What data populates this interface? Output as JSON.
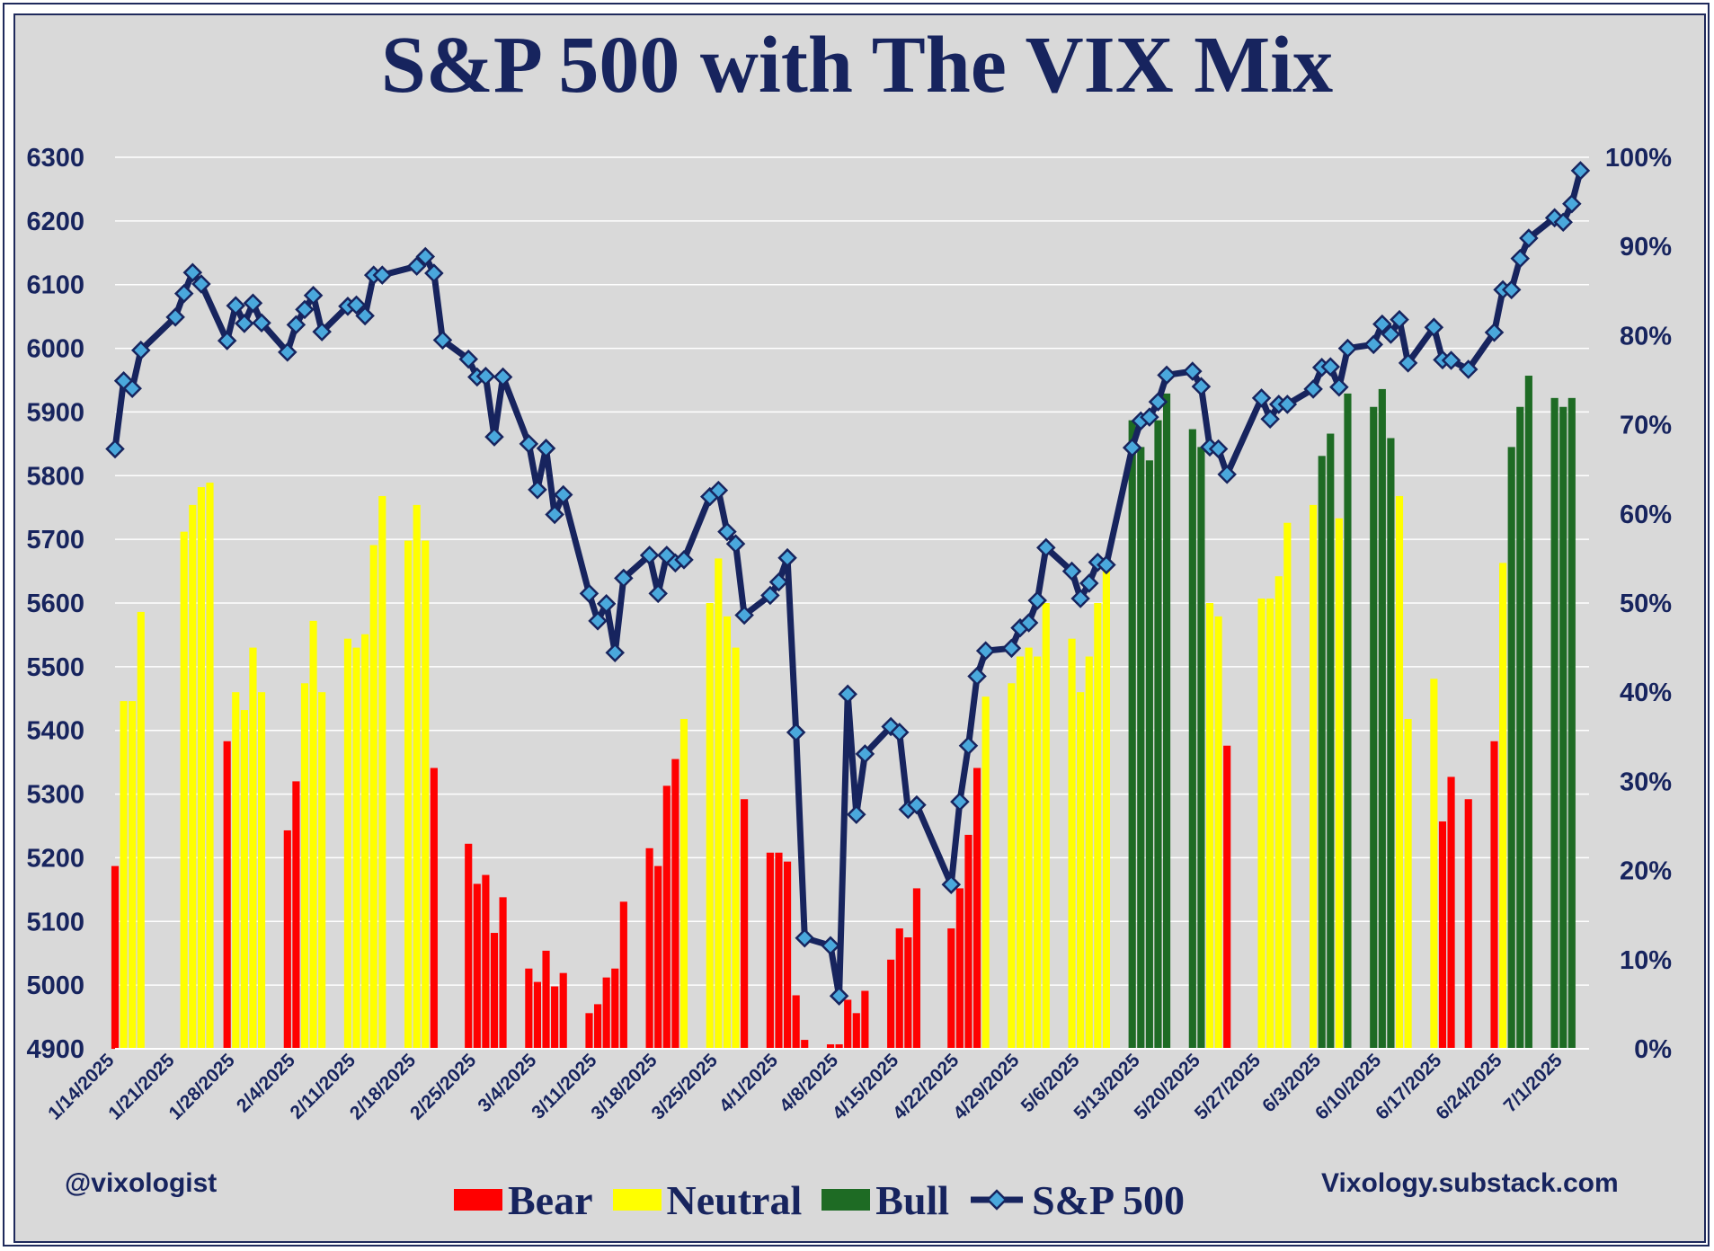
{
  "chart_data": {
    "type": "bar",
    "title": "S&P 500 with The VIX Mix",
    "y_left": {
      "ticks": [
        "6300",
        "6200",
        "6100",
        "6000",
        "5900",
        "5800",
        "5700",
        "5600",
        "5500",
        "5400",
        "5300",
        "5200",
        "5100",
        "5000",
        "4900"
      ],
      "range": [
        4900,
        6300
      ]
    },
    "y_right": {
      "ticks": [
        "100%",
        "90%",
        "80%",
        "70%",
        "60%",
        "50%",
        "40%",
        "30%",
        "20%",
        "10%",
        "0%"
      ],
      "range": [
        0,
        100
      ]
    },
    "x_tick_labels": [
      "1/14/2025",
      "1/21/2025",
      "1/28/2025",
      "2/4/2025",
      "2/11/2025",
      "2/18/2025",
      "2/25/2025",
      "3/4/2025",
      "3/11/2025",
      "3/18/2025",
      "3/25/2025",
      "4/1/2025",
      "4/8/2025",
      "4/15/2025",
      "4/22/2025",
      "4/29/2025",
      "5/6/2025",
      "5/13/2025",
      "5/20/2025",
      "5/27/2025",
      "6/3/2025",
      "6/10/2025",
      "6/17/2025",
      "6/24/2025",
      "7/1/2025"
    ],
    "x_range": [
      "1/14/2025",
      "7/4/2025"
    ],
    "grid": true,
    "legend_position": "bottom",
    "colors": {
      "Bear": "#ff0000",
      "Neutral": "#ffff00",
      "Bull": "#1e6b24",
      "line": "#17245e",
      "marker": "#4aa8dc"
    },
    "series": [
      {
        "name": "VIX Mix",
        "axis": "right",
        "points": [
          [
            "1/14/2025",
            20.5,
            "Bear"
          ],
          [
            "1/15/2025",
            39,
            "Neutral"
          ],
          [
            "1/16/2025",
            39,
            "Neutral"
          ],
          [
            "1/17/2025",
            49,
            "Neutral"
          ],
          [
            "1/22/2025",
            58,
            "Neutral"
          ],
          [
            "1/23/2025",
            61,
            "Neutral"
          ],
          [
            "1/24/2025",
            63,
            "Neutral"
          ],
          [
            "1/25/2025",
            63.5,
            "Neutral"
          ],
          [
            "1/27/2025",
            34.5,
            "Bear"
          ],
          [
            "1/28/2025",
            40,
            "Neutral"
          ],
          [
            "1/29/2025",
            38,
            "Neutral"
          ],
          [
            "1/30/2025",
            45,
            "Neutral"
          ],
          [
            "1/31/2025",
            40,
            "Neutral"
          ],
          [
            "2/3/2025",
            24.5,
            "Bear"
          ],
          [
            "2/4/2025",
            30,
            "Bear"
          ],
          [
            "2/5/2025",
            41,
            "Neutral"
          ],
          [
            "2/6/2025",
            48,
            "Neutral"
          ],
          [
            "2/7/2025",
            40,
            "Neutral"
          ],
          [
            "2/10/2025",
            46,
            "Neutral"
          ],
          [
            "2/11/2025",
            45,
            "Neutral"
          ],
          [
            "2/12/2025",
            46.5,
            "Neutral"
          ],
          [
            "2/13/2025",
            56.5,
            "Neutral"
          ],
          [
            "2/14/2025",
            62,
            "Neutral"
          ],
          [
            "2/17/2025",
            57,
            "Neutral"
          ],
          [
            "2/18/2025",
            61,
            "Neutral"
          ],
          [
            "2/19/2025",
            57,
            "Neutral"
          ],
          [
            "2/20/2025",
            31.5,
            "Bear"
          ],
          [
            "2/24/2025",
            23,
            "Bear"
          ],
          [
            "2/25/2025",
            18.5,
            "Bear"
          ],
          [
            "2/26/2025",
            19.5,
            "Bear"
          ],
          [
            "2/27/2025",
            13,
            "Bear"
          ],
          [
            "2/28/2025",
            17,
            "Bear"
          ],
          [
            "3/3/2025",
            9,
            "Bear"
          ],
          [
            "3/4/2025",
            7.5,
            "Bear"
          ],
          [
            "3/5/2025",
            11,
            "Bear"
          ],
          [
            "3/6/2025",
            7,
            "Bear"
          ],
          [
            "3/7/2025",
            8.5,
            "Bear"
          ],
          [
            "3/10/2025",
            4,
            "Bear"
          ],
          [
            "3/11/2025",
            5,
            "Bear"
          ],
          [
            "3/12/2025",
            8,
            "Bear"
          ],
          [
            "3/13/2025",
            9,
            "Bear"
          ],
          [
            "3/14/2025",
            16.5,
            "Bear"
          ],
          [
            "3/17/2025",
            22.5,
            "Bear"
          ],
          [
            "3/18/2025",
            20.5,
            "Bear"
          ],
          [
            "3/19/2025",
            29.5,
            "Bear"
          ],
          [
            "3/20/2025",
            32.5,
            "Bear"
          ],
          [
            "3/21/2025",
            37,
            "Neutral"
          ],
          [
            "3/24/2025",
            50,
            "Neutral"
          ],
          [
            "3/25/2025",
            55,
            "Neutral"
          ],
          [
            "3/26/2025",
            48.5,
            "Neutral"
          ],
          [
            "3/27/2025",
            45,
            "Neutral"
          ],
          [
            "3/28/2025",
            28,
            "Bear"
          ],
          [
            "3/31/2025",
            22,
            "Bear"
          ],
          [
            "4/1/2025",
            22,
            "Bear"
          ],
          [
            "4/2/2025",
            21,
            "Bear"
          ],
          [
            "4/3/2025",
            6,
            "Bear"
          ],
          [
            "4/4/2025",
            1,
            "Bear"
          ],
          [
            "4/7/2025",
            0.5,
            "Bear"
          ],
          [
            "4/8/2025",
            0.5,
            "Bear"
          ],
          [
            "4/9/2025",
            5.5,
            "Bear"
          ],
          [
            "4/10/2025",
            4,
            "Bear"
          ],
          [
            "4/11/2025",
            6.5,
            "Bear"
          ],
          [
            "4/14/2025",
            10,
            "Bear"
          ],
          [
            "4/15/2025",
            13.5,
            "Bear"
          ],
          [
            "4/16/2025",
            12.5,
            "Bear"
          ],
          [
            "4/17/2025",
            18,
            "Bear"
          ],
          [
            "4/21/2025",
            13.5,
            "Bear"
          ],
          [
            "4/22/2025",
            18,
            "Bear"
          ],
          [
            "4/23/2025",
            24,
            "Bear"
          ],
          [
            "4/24/2025",
            31.5,
            "Bear"
          ],
          [
            "4/25/2025",
            39.5,
            "Neutral"
          ],
          [
            "4/28/2025",
            41,
            "Neutral"
          ],
          [
            "4/29/2025",
            44,
            "Neutral"
          ],
          [
            "4/30/2025",
            45,
            "Neutral"
          ],
          [
            "5/1/2025",
            44,
            "Neutral"
          ],
          [
            "5/2/2025",
            50,
            "Neutral"
          ],
          [
            "5/5/2025",
            46,
            "Neutral"
          ],
          [
            "5/6/2025",
            40,
            "Neutral"
          ],
          [
            "5/7/2025",
            44,
            "Neutral"
          ],
          [
            "5/8/2025",
            50,
            "Neutral"
          ],
          [
            "5/9/2025",
            54,
            "Neutral"
          ],
          [
            "5/12/2025",
            70.5,
            "Bull"
          ],
          [
            "5/13/2025",
            67.5,
            "Bull"
          ],
          [
            "5/14/2025",
            66,
            "Bull"
          ],
          [
            "5/15/2025",
            70.5,
            "Bull"
          ],
          [
            "5/16/2025",
            73.5,
            "Bull"
          ],
          [
            "5/19/2025",
            69.5,
            "Bull"
          ],
          [
            "5/20/2025",
            67.5,
            "Bull"
          ],
          [
            "5/21/2025",
            50,
            "Neutral"
          ],
          [
            "5/22/2025",
            48.5,
            "Neutral"
          ],
          [
            "5/23/2025",
            34,
            "Bear"
          ],
          [
            "5/27/2025",
            50.5,
            "Neutral"
          ],
          [
            "5/28/2025",
            50.5,
            "Neutral"
          ],
          [
            "5/29/2025",
            53,
            "Neutral"
          ],
          [
            "5/30/2025",
            59,
            "Neutral"
          ],
          [
            "6/2/2025",
            61,
            "Neutral"
          ],
          [
            "6/3/2025",
            66.5,
            "Bull"
          ],
          [
            "6/4/2025",
            69,
            "Bull"
          ],
          [
            "6/5/2025",
            59.5,
            "Neutral"
          ],
          [
            "6/6/2025",
            73.5,
            "Bull"
          ],
          [
            "6/9/2025",
            72,
            "Bull"
          ],
          [
            "6/10/2025",
            74,
            "Bull"
          ],
          [
            "6/11/2025",
            68.5,
            "Bull"
          ],
          [
            "6/12/2025",
            62,
            "Neutral"
          ],
          [
            "6/13/2025",
            37,
            "Neutral"
          ],
          [
            "6/16/2025",
            41.5,
            "Neutral"
          ],
          [
            "6/17/2025",
            25.5,
            "Bear"
          ],
          [
            "6/18/2025",
            30.5,
            "Bear"
          ],
          [
            "6/20/2025",
            28,
            "Bear"
          ],
          [
            "6/23/2025",
            34.5,
            "Bear"
          ],
          [
            "6/24/2025",
            54.5,
            "Neutral"
          ],
          [
            "6/25/2025",
            67.5,
            "Bull"
          ],
          [
            "6/26/2025",
            72,
            "Bull"
          ],
          [
            "6/27/2025",
            75.5,
            "Bull"
          ],
          [
            "6/30/2025",
            73,
            "Bull"
          ],
          [
            "7/1/2025",
            72,
            "Bull"
          ],
          [
            "7/2/2025",
            73,
            "Bull"
          ]
        ]
      },
      {
        "name": "S&P 500",
        "axis": "left",
        "type": "line",
        "points": [
          [
            "1/14/2025",
            5842
          ],
          [
            "1/15/2025",
            5949
          ],
          [
            "1/16/2025",
            5937
          ],
          [
            "1/17/2025",
            5997
          ],
          [
            "1/21/2025",
            6049
          ],
          [
            "1/22/2025",
            6086
          ],
          [
            "1/23/2025",
            6119
          ],
          [
            "1/24/2025",
            6101
          ],
          [
            "1/27/2025",
            6012
          ],
          [
            "1/28/2025",
            6067
          ],
          [
            "1/29/2025",
            6039
          ],
          [
            "1/30/2025",
            6071
          ],
          [
            "1/31/2025",
            6040
          ],
          [
            "2/3/2025",
            5994
          ],
          [
            "2/4/2025",
            6037
          ],
          [
            "2/5/2025",
            6061
          ],
          [
            "2/6/2025",
            6083
          ],
          [
            "2/7/2025",
            6026
          ],
          [
            "2/10/2025",
            6066
          ],
          [
            "2/11/2025",
            6068
          ],
          [
            "2/12/2025",
            6051
          ],
          [
            "2/13/2025",
            6115
          ],
          [
            "2/14/2025",
            6115
          ],
          [
            "2/18/2025",
            6129
          ],
          [
            "2/19/2025",
            6144
          ],
          [
            "2/20/2025",
            6118
          ],
          [
            "2/21/2025",
            6013
          ],
          [
            "2/24/2025",
            5983
          ],
          [
            "2/25/2025",
            5955
          ],
          [
            "2/26/2025",
            5956
          ],
          [
            "2/27/2025",
            5861
          ],
          [
            "2/28/2025",
            5955
          ],
          [
            "3/3/2025",
            5850
          ],
          [
            "3/4/2025",
            5778
          ],
          [
            "3/5/2025",
            5843
          ],
          [
            "3/6/2025",
            5739
          ],
          [
            "3/7/2025",
            5770
          ],
          [
            "3/10/2025",
            5615
          ],
          [
            "3/11/2025",
            5572
          ],
          [
            "3/12/2025",
            5599
          ],
          [
            "3/13/2025",
            5522
          ],
          [
            "3/14/2025",
            5639
          ],
          [
            "3/17/2025",
            5675
          ],
          [
            "3/18/2025",
            5615
          ],
          [
            "3/19/2025",
            5675
          ],
          [
            "3/20/2025",
            5663
          ],
          [
            "3/21/2025",
            5668
          ],
          [
            "3/24/2025",
            5767
          ],
          [
            "3/25/2025",
            5777
          ],
          [
            "3/26/2025",
            5712
          ],
          [
            "3/27/2025",
            5693
          ],
          [
            "3/28/2025",
            5581
          ],
          [
            "3/31/2025",
            5612
          ],
          [
            "4/1/2025",
            5633
          ],
          [
            "4/2/2025",
            5671
          ],
          [
            "4/3/2025",
            5397
          ],
          [
            "4/4/2025",
            5074
          ],
          [
            "4/7/2025",
            5062
          ],
          [
            "4/8/2025",
            4983
          ],
          [
            "4/9/2025",
            5457
          ],
          [
            "4/10/2025",
            5268
          ],
          [
            "4/11/2025",
            5363
          ],
          [
            "4/14/2025",
            5406
          ],
          [
            "4/15/2025",
            5397
          ],
          [
            "4/16/2025",
            5276
          ],
          [
            "4/17/2025",
            5283
          ],
          [
            "4/21/2025",
            5158
          ],
          [
            "4/22/2025",
            5288
          ],
          [
            "4/23/2025",
            5376
          ],
          [
            "4/24/2025",
            5485
          ],
          [
            "4/25/2025",
            5525
          ],
          [
            "4/28/2025",
            5529
          ],
          [
            "4/29/2025",
            5561
          ],
          [
            "4/30/2025",
            5569
          ],
          [
            "5/1/2025",
            5604
          ],
          [
            "5/2/2025",
            5687
          ],
          [
            "5/5/2025",
            5650
          ],
          [
            "5/6/2025",
            5607
          ],
          [
            "5/7/2025",
            5631
          ],
          [
            "5/8/2025",
            5664
          ],
          [
            "5/9/2025",
            5660
          ],
          [
            "5/12/2025",
            5844
          ],
          [
            "5/13/2025",
            5886
          ],
          [
            "5/14/2025",
            5892
          ],
          [
            "5/15/2025",
            5916
          ],
          [
            "5/16/2025",
            5958
          ],
          [
            "5/19/2025",
            5964
          ],
          [
            "5/20/2025",
            5940
          ],
          [
            "5/21/2025",
            5845
          ],
          [
            "5/22/2025",
            5842
          ],
          [
            "5/23/2025",
            5802
          ],
          [
            "5/27/2025",
            5922
          ],
          [
            "5/28/2025",
            5889
          ],
          [
            "5/29/2025",
            5912
          ],
          [
            "5/30/2025",
            5912
          ],
          [
            "6/2/2025",
            5936
          ],
          [
            "6/3/2025",
            5970
          ],
          [
            "6/4/2025",
            5971
          ],
          [
            "6/5/2025",
            5939
          ],
          [
            "6/6/2025",
            6000
          ],
          [
            "6/9/2025",
            6006
          ],
          [
            "6/10/2025",
            6038
          ],
          [
            "6/11/2025",
            6022
          ],
          [
            "6/12/2025",
            6045
          ],
          [
            "6/13/2025",
            5977
          ],
          [
            "6/16/2025",
            6033
          ],
          [
            "6/17/2025",
            5982
          ],
          [
            "6/18/2025",
            5981
          ],
          [
            "6/20/2025",
            5967
          ],
          [
            "6/23/2025",
            6025
          ],
          [
            "6/24/2025",
            6092
          ],
          [
            "6/25/2025",
            6092
          ],
          [
            "6/26/2025",
            6141
          ],
          [
            "6/27/2025",
            6173
          ],
          [
            "6/30/2025",
            6205
          ],
          [
            "7/1/2025",
            6198
          ],
          [
            "7/2/2025",
            6227
          ],
          [
            "7/3/2025",
            6279
          ]
        ]
      }
    ]
  },
  "title": "S&P 500 with The VIX Mix",
  "footer": {
    "handle": "@vixologist",
    "site": "Vixology.substack.com"
  },
  "legend": {
    "bear": "Bear",
    "neutral": "Neutral",
    "bull": "Bull",
    "sp500": "S&P 500"
  }
}
